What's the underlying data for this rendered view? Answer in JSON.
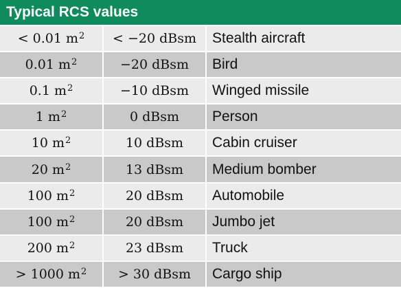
{
  "title": "Typical RCS values",
  "rows": [
    {
      "area": "< 0.01 m",
      "exp": "2",
      "dbsm": "< −20 dBsm",
      "object": "Stealth aircraft"
    },
    {
      "area": "0.01 m",
      "exp": "2",
      "dbsm": "−20 dBsm",
      "object": "Bird"
    },
    {
      "area": "0.1 m",
      "exp": "2",
      "dbsm": "−10 dBsm",
      "object": "Winged missile"
    },
    {
      "area": "1 m",
      "exp": "2",
      "dbsm": "0 dBsm",
      "object": "Person"
    },
    {
      "area": "10 m",
      "exp": "2",
      "dbsm": "10 dBsm",
      "object": "Cabin cruiser"
    },
    {
      "area": "20 m",
      "exp": "2",
      "dbsm": "13 dBsm",
      "object": "Medium bomber"
    },
    {
      "area": "100 m",
      "exp": "2",
      "dbsm": "20 dBsm",
      "object": "Automobile"
    },
    {
      "area": "100 m",
      "exp": "2",
      "dbsm": "20 dBsm",
      "object": "Jumbo jet"
    },
    {
      "area": "200 m",
      "exp": "2",
      "dbsm": "23 dBsm",
      "object": "Truck"
    },
    {
      "area": "> 1000 m",
      "exp": "2",
      "dbsm": "> 30 dBsm",
      "object": "Cargo ship"
    }
  ],
  "colors": {
    "header_bg": "#0f8a5f",
    "row_light": "#ebebeb",
    "row_dark": "#c9c9c9"
  }
}
